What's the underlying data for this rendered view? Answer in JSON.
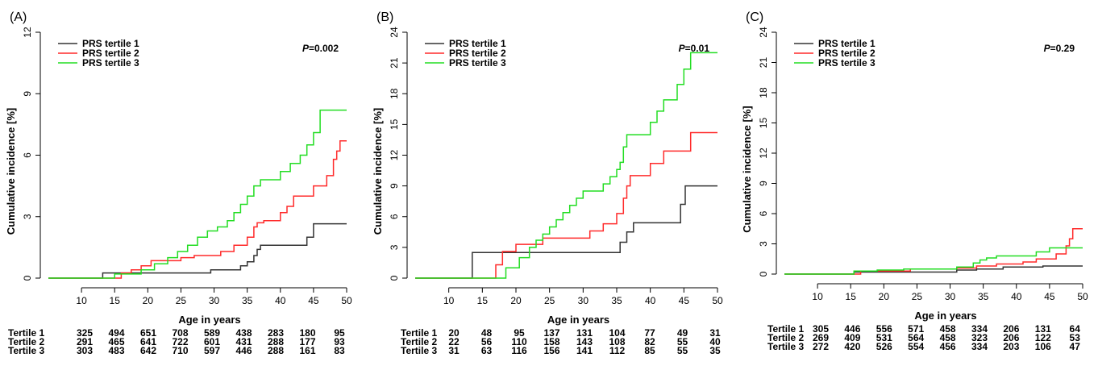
{
  "panels": [
    {
      "label": "(A)",
      "ylabel": "Cumulative incidence [%]",
      "xlabel": "Age in years",
      "p_prefix": "P",
      "p_value": "=0.002",
      "legend": [
        "PRS tertile 1",
        "PRS tertile 2",
        "PRS tertile 3"
      ],
      "risk_labels": [
        "Tertile 1",
        "Tertile 2",
        "Tertile 3"
      ],
      "risk_table": [
        [
          "325",
          "494",
          "651",
          "708",
          "589",
          "438",
          "283",
          "180",
          "95"
        ],
        [
          "291",
          "465",
          "641",
          "722",
          "601",
          "431",
          "288",
          "177",
          "93"
        ],
        [
          "303",
          "483",
          "642",
          "710",
          "597",
          "446",
          "288",
          "161",
          "83"
        ]
      ]
    },
    {
      "label": "(B)",
      "ylabel": "Cumulative incidence [%]",
      "xlabel": "Age in years",
      "p_prefix": "P",
      "p_value": "=0.01",
      "legend": [
        "PRS tertile 1",
        "PRS tertile 2",
        "PRS tertile 3"
      ],
      "risk_labels": [
        "Tertile 1",
        "Tertile 2",
        "Tertile 3"
      ],
      "risk_table": [
        [
          "20",
          "48",
          "95",
          "137",
          "131",
          "104",
          "77",
          "49",
          "31"
        ],
        [
          "22",
          "56",
          "110",
          "158",
          "143",
          "108",
          "82",
          "55",
          "40"
        ],
        [
          "31",
          "63",
          "116",
          "156",
          "141",
          "112",
          "85",
          "55",
          "35"
        ]
      ]
    },
    {
      "label": "(C)",
      "ylabel": "Cumulative incidence [%]",
      "xlabel": "Age in years",
      "p_prefix": "P",
      "p_value": "=0.29",
      "legend": [
        "PRS tertile 1",
        "PRS tertile 2",
        "PRS tertile 3"
      ],
      "risk_labels": [
        "Tertile 1",
        "Tertile 2",
        "Tertile 3"
      ],
      "risk_table": [
        [
          "305",
          "446",
          "556",
          "571",
          "458",
          "334",
          "206",
          "131",
          "64"
        ],
        [
          "269",
          "409",
          "531",
          "564",
          "458",
          "323",
          "206",
          "122",
          "53"
        ],
        [
          "272",
          "420",
          "526",
          "554",
          "456",
          "334",
          "203",
          "106",
          "47"
        ]
      ]
    }
  ],
  "colors": {
    "tertile1": "#333333",
    "tertile2": "#ff2a2a",
    "tertile3": "#22dd22"
  },
  "chart_data": [
    {
      "type": "line",
      "step": true,
      "xlabel": "Age in years",
      "ylabel": "Cumulative incidence [%]",
      "xlim": [
        5,
        50
      ],
      "ylim": [
        0,
        12
      ],
      "xticks": [
        10,
        15,
        20,
        25,
        30,
        35,
        40,
        45,
        50
      ],
      "yticks": [
        0,
        3,
        6,
        9,
        12
      ],
      "legend": "top-left",
      "series": [
        {
          "name": "PRS tertile 1",
          "x": [
            5,
            13.2,
            29.5,
            34,
            35,
            36,
            36.5,
            37,
            44,
            45,
            50
          ],
          "y": [
            0,
            0.25,
            0.4,
            0.6,
            0.8,
            1.1,
            1.4,
            1.6,
            2.0,
            2.65,
            2.65
          ]
        },
        {
          "name": "PRS tertile 2",
          "x": [
            5,
            16,
            17.5,
            19,
            20.5,
            25,
            27,
            31,
            33,
            35,
            36,
            36.5,
            37.5,
            40,
            41,
            42,
            45,
            47,
            48,
            48.5,
            49,
            50
          ],
          "y": [
            0,
            0.25,
            0.4,
            0.6,
            0.85,
            1.0,
            1.1,
            1.3,
            1.6,
            2.0,
            2.5,
            2.7,
            2.8,
            3.2,
            3.5,
            4.0,
            4.5,
            5.0,
            5.8,
            6.2,
            6.7,
            6.7
          ]
        },
        {
          "name": "PRS tertile 3",
          "x": [
            5,
            15,
            19,
            21,
            23,
            24.5,
            26,
            27.5,
            29,
            30.5,
            32,
            33,
            34,
            35,
            36,
            37,
            40,
            41.5,
            43,
            44,
            45,
            46,
            50
          ],
          "y": [
            0,
            0.2,
            0.4,
            0.7,
            1.0,
            1.3,
            1.6,
            2.0,
            2.3,
            2.5,
            2.8,
            3.2,
            3.6,
            4.0,
            4.5,
            4.8,
            5.2,
            5.6,
            6.0,
            6.5,
            7.1,
            8.2,
            8.2
          ]
        }
      ]
    },
    {
      "type": "line",
      "step": true,
      "xlabel": "Age in years",
      "ylabel": "Cumulative incidence [%]",
      "xlim": [
        5,
        50
      ],
      "ylim": [
        0,
        24
      ],
      "xticks": [
        10,
        15,
        20,
        25,
        30,
        35,
        40,
        45,
        50
      ],
      "yticks": [
        0,
        3,
        6,
        9,
        12,
        15,
        18,
        21,
        24
      ],
      "legend": "top-left",
      "series": [
        {
          "name": "PRS tertile 1",
          "x": [
            5,
            13.5,
            35.5,
            36.5,
            37.5,
            44.5,
            45.2,
            50
          ],
          "y": [
            0,
            2.5,
            3.5,
            4.5,
            5.4,
            7.2,
            9.0,
            9.0
          ]
        },
        {
          "name": "PRS tertile 2",
          "x": [
            5,
            17,
            18,
            20,
            24,
            31,
            33,
            35,
            36,
            36.5,
            37,
            40,
            42,
            46,
            50
          ],
          "y": [
            0,
            1.3,
            2.6,
            3.3,
            3.9,
            4.6,
            5.3,
            6.3,
            7.8,
            9.0,
            10.0,
            11.2,
            12.4,
            14.2,
            14.2
          ]
        },
        {
          "name": "PRS tertile 3",
          "x": [
            5,
            18.5,
            20.5,
            22,
            23,
            24,
            25,
            26,
            27,
            28,
            29,
            30,
            33,
            34,
            35,
            35.5,
            36,
            36.5,
            37,
            40,
            41,
            42,
            44,
            45,
            46,
            50
          ],
          "y": [
            0,
            1.0,
            2.0,
            3.0,
            3.7,
            4.3,
            5.0,
            5.7,
            6.4,
            7.1,
            7.8,
            8.5,
            9.2,
            9.9,
            10.6,
            11.3,
            12.8,
            14.0,
            14.0,
            15.2,
            16.3,
            17.4,
            18.9,
            20.4,
            22.0,
            22.0
          ]
        }
      ]
    },
    {
      "type": "line",
      "step": true,
      "xlabel": "Age in years",
      "ylabel": "Cumulative incidence [%]",
      "xlim": [
        5,
        50
      ],
      "ylim": [
        0,
        24
      ],
      "xticks": [
        10,
        15,
        20,
        25,
        30,
        35,
        40,
        45,
        50
      ],
      "yticks": [
        0,
        3,
        6,
        9,
        12,
        15,
        18,
        21,
        24
      ],
      "legend": "top-left",
      "series": [
        {
          "name": "PRS tertile 1",
          "x": [
            5,
            15.5,
            31,
            34,
            38,
            44,
            50
          ],
          "y": [
            0,
            0.2,
            0.4,
            0.5,
            0.7,
            0.8,
            0.8
          ]
        },
        {
          "name": "PRS tertile 2",
          "x": [
            5,
            16.5,
            24,
            31,
            34,
            37,
            41,
            43,
            46,
            47.5,
            48,
            48.5,
            50
          ],
          "y": [
            0,
            0.3,
            0.5,
            0.6,
            0.8,
            1.0,
            1.2,
            1.5,
            2.0,
            2.8,
            3.5,
            4.5,
            4.5
          ]
        },
        {
          "name": "PRS tertile 3",
          "x": [
            5,
            15.5,
            19,
            23,
            31,
            33.5,
            34.5,
            35.5,
            37,
            43,
            45,
            50
          ],
          "y": [
            0,
            0.3,
            0.4,
            0.5,
            0.7,
            1.1,
            1.4,
            1.6,
            1.8,
            2.2,
            2.6,
            2.6
          ]
        }
      ]
    }
  ]
}
